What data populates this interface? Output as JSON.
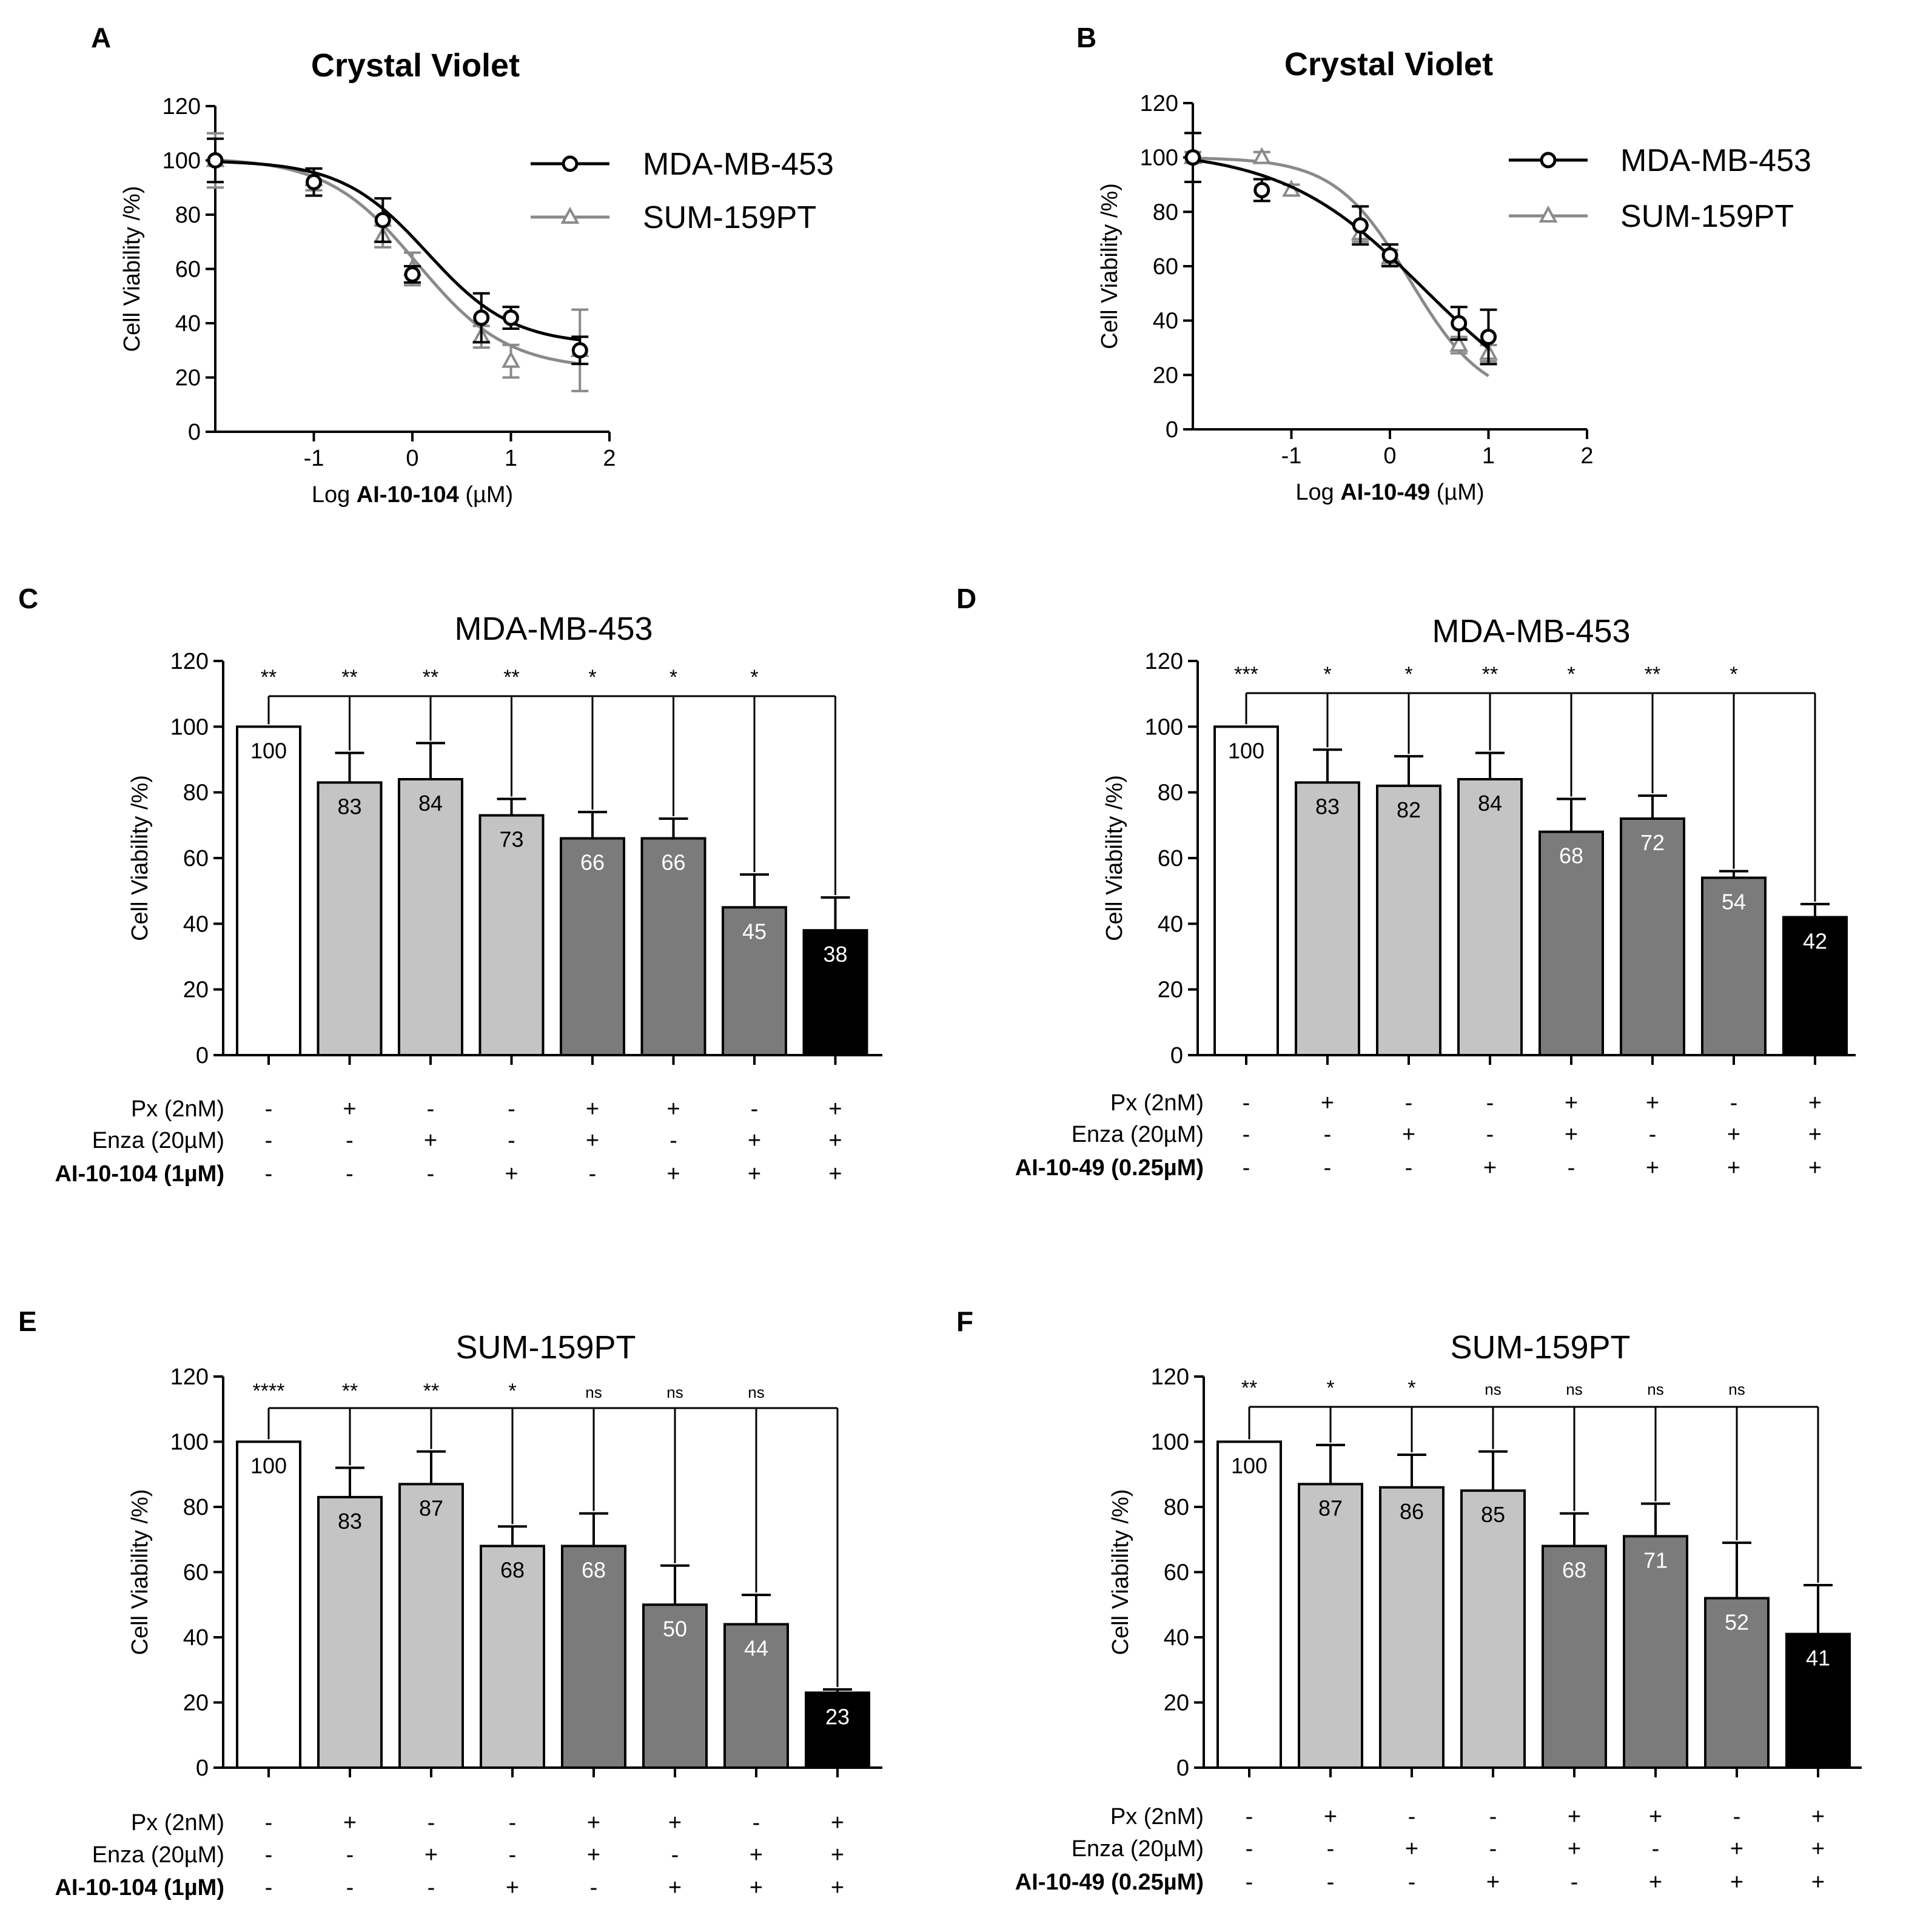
{
  "colors": {
    "black": "#000000",
    "white": "#ffffff",
    "light_gray": "#c4c4c4",
    "dark_gray": "#7b7b7b",
    "sum159_line": "#8a8a8a"
  },
  "chart_data": [
    {
      "panel": "A",
      "type": "line",
      "title": "Crystal Violet",
      "xlabel_prefix": "Log ",
      "xlabel_bold": "AI-10-104",
      "xlabel_suffix": " (µM)",
      "ylabel": "Cell Viability /%)",
      "xlim": [
        -2,
        2
      ],
      "ylim": [
        0,
        120
      ],
      "xticks": [
        -1,
        0,
        1,
        2
      ],
      "yticks": [
        0,
        20,
        40,
        60,
        80,
        100,
        120
      ],
      "series": [
        {
          "name": "MDA-MB-453",
          "marker": "circle",
          "points": [
            {
              "x": -2,
              "y": 100,
              "err": 8
            },
            {
              "x": -1,
              "y": 92,
              "err": 5
            },
            {
              "x": -0.3,
              "y": 78,
              "err": 8
            },
            {
              "x": 0,
              "y": 58,
              "err": 3
            },
            {
              "x": 0.7,
              "y": 42,
              "err": 9
            },
            {
              "x": 1,
              "y": 42,
              "err": 4
            },
            {
              "x": 1.7,
              "y": 30,
              "err": 5
            }
          ],
          "curve": {
            "bottom": 32,
            "top": 100,
            "logIC50": 0.15,
            "hill": -1.0
          }
        },
        {
          "name": "SUM-159PT",
          "marker": "triangle",
          "points": [
            {
              "x": -2,
              "y": 100,
              "err": 10
            },
            {
              "x": -1,
              "y": 93,
              "err": 4
            },
            {
              "x": -0.3,
              "y": 72,
              "err": 4
            },
            {
              "x": 0,
              "y": 60,
              "err": 6
            },
            {
              "x": 0.7,
              "y": 35,
              "err": 4
            },
            {
              "x": 1,
              "y": 26,
              "err": 6
            },
            {
              "x": 1.7,
              "y": 30,
              "err": 15
            }
          ],
          "curve": {
            "bottom": 23,
            "top": 101,
            "logIC50": 0.05,
            "hill": -0.95
          }
        }
      ]
    },
    {
      "panel": "B",
      "type": "line",
      "title": "Crystal Violet",
      "xlabel_prefix": "Log ",
      "xlabel_bold": "AI-10-49",
      "xlabel_suffix": " (µM)",
      "ylabel": "Cell Viability /%)",
      "xlim": [
        -2,
        2
      ],
      "ylim": [
        0,
        120
      ],
      "xticks": [
        -1,
        0,
        1,
        2
      ],
      "yticks": [
        0,
        20,
        40,
        60,
        80,
        100,
        120
      ],
      "series": [
        {
          "name": "MDA-MB-453",
          "marker": "circle",
          "points": [
            {
              "x": -2,
              "y": 100,
              "err": 9
            },
            {
              "x": -1.3,
              "y": 88,
              "err": 4
            },
            {
              "x": -0.3,
              "y": 75,
              "err": 7
            },
            {
              "x": 0,
              "y": 64,
              "err": 4
            },
            {
              "x": 0.7,
              "y": 39,
              "err": 6
            },
            {
              "x": 1,
              "y": 34,
              "err": 10
            }
          ],
          "curve": {
            "bottom": 0,
            "top": 103,
            "logIC50": 0.35,
            "hill": -0.6
          }
        },
        {
          "name": "SUM-159PT",
          "marker": "triangle",
          "points": [
            {
              "x": -2,
              "y": 100,
              "err": 2
            },
            {
              "x": -1.3,
              "y": 100,
              "err": 2
            },
            {
              "x": -1,
              "y": 88,
              "err": 2
            },
            {
              "x": -0.3,
              "y": 72,
              "err": 3
            },
            {
              "x": 0,
              "y": 63,
              "err": 3
            },
            {
              "x": 0.7,
              "y": 31,
              "err": 3
            },
            {
              "x": 1,
              "y": 28,
              "err": 3
            }
          ],
          "curve": {
            "bottom": 10,
            "top": 100,
            "logIC50": 0.2,
            "hill": -1.15
          }
        }
      ]
    },
    {
      "panel": "C",
      "type": "bar",
      "title": "MDA-MB-453",
      "ylabel": "Cell Viability /%)",
      "ylim": [
        0,
        120
      ],
      "yticks": [
        0,
        20,
        40,
        60,
        80,
        100,
        120
      ],
      "values": [
        100,
        83,
        84,
        73,
        66,
        66,
        45,
        38
      ],
      "errors": [
        0,
        9,
        11,
        5,
        8,
        6,
        10,
        10
      ],
      "labels": [
        "100",
        "83",
        "84",
        "73",
        "66",
        "66",
        "45",
        "38"
      ],
      "bar_colors": [
        "white",
        "light",
        "light",
        "light",
        "dark",
        "dark",
        "dark",
        "black"
      ],
      "significance": [
        "**",
        "**",
        "**",
        "**",
        "*",
        "*",
        "*"
      ],
      "conditions": [
        {
          "label": "Px (2nM)",
          "bold": false,
          "signs": [
            "-",
            "+",
            "-",
            "-",
            "+",
            "+",
            "-",
            "+"
          ]
        },
        {
          "label": "Enza (20µM)",
          "bold": false,
          "signs": [
            "-",
            "-",
            "+",
            "-",
            "+",
            "-",
            "+",
            "+"
          ]
        },
        {
          "label": "AI-10-104 (1µM)",
          "bold": true,
          "signs": [
            "-",
            "-",
            "-",
            "+",
            "-",
            "+",
            "+",
            "+"
          ]
        }
      ]
    },
    {
      "panel": "D",
      "type": "bar",
      "title": "MDA-MB-453",
      "ylabel": "Cell Viability /%)",
      "ylim": [
        0,
        120
      ],
      "yticks": [
        0,
        20,
        40,
        60,
        80,
        100,
        120
      ],
      "values": [
        100,
        83,
        82,
        84,
        68,
        72,
        54,
        42
      ],
      "errors": [
        0,
        10,
        9,
        8,
        10,
        7,
        2,
        4
      ],
      "labels": [
        "100",
        "83",
        "82",
        "84",
        "68",
        "72",
        "54",
        "42"
      ],
      "bar_colors": [
        "white",
        "light",
        "light",
        "light",
        "dark",
        "dark",
        "dark",
        "black"
      ],
      "significance": [
        "***",
        "*",
        "*",
        "**",
        "*",
        "**",
        "*"
      ],
      "conditions": [
        {
          "label": "Px (2nM)",
          "bold": false,
          "signs": [
            "-",
            "+",
            "-",
            "-",
            "+",
            "+",
            "-",
            "+"
          ]
        },
        {
          "label": "Enza (20µM)",
          "bold": false,
          "signs": [
            "-",
            "-",
            "+",
            "-",
            "+",
            "-",
            "+",
            "+"
          ]
        },
        {
          "label": "AI-10-49 (0.25µM)",
          "bold": true,
          "signs": [
            "-",
            "-",
            "-",
            "+",
            "-",
            "+",
            "+",
            "+"
          ]
        }
      ]
    },
    {
      "panel": "E",
      "type": "bar",
      "title": "SUM-159PT",
      "ylabel": "Cell Viability /%)",
      "ylim": [
        0,
        120
      ],
      "yticks": [
        0,
        20,
        40,
        60,
        80,
        100,
        120
      ],
      "values": [
        100,
        83,
        87,
        68,
        68,
        50,
        44,
        23
      ],
      "errors": [
        0,
        9,
        10,
        6,
        10,
        12,
        9,
        1
      ],
      "labels": [
        "100",
        "83",
        "87",
        "68",
        "68",
        "50",
        "44",
        "23"
      ],
      "bar_colors": [
        "white",
        "light",
        "light",
        "light",
        "dark",
        "dark",
        "dark",
        "black"
      ],
      "significance": [
        "****",
        "**",
        "**",
        "*",
        "ns",
        "ns",
        "ns"
      ],
      "conditions": [
        {
          "label": "Px (2nM)",
          "bold": false,
          "signs": [
            "-",
            "+",
            "-",
            "-",
            "+",
            "+",
            "-",
            "+"
          ]
        },
        {
          "label": "Enza (20µM)",
          "bold": false,
          "signs": [
            "-",
            "-",
            "+",
            "-",
            "+",
            "-",
            "+",
            "+"
          ]
        },
        {
          "label": "AI-10-104 (1µM)",
          "bold": true,
          "signs": [
            "-",
            "-",
            "-",
            "+",
            "-",
            "+",
            "+",
            "+"
          ]
        }
      ]
    },
    {
      "panel": "F",
      "type": "bar",
      "title": "SUM-159PT",
      "ylabel": "Cell Viability /%)",
      "ylim": [
        0,
        120
      ],
      "yticks": [
        0,
        20,
        40,
        60,
        80,
        100,
        120
      ],
      "values": [
        100,
        87,
        86,
        85,
        68,
        71,
        52,
        41
      ],
      "errors": [
        0,
        12,
        10,
        12,
        10,
        10,
        17,
        15
      ],
      "labels": [
        "100",
        "87",
        "86",
        "85",
        "68",
        "71",
        "52",
        "41"
      ],
      "bar_colors": [
        "white",
        "light",
        "light",
        "light",
        "dark",
        "dark",
        "dark",
        "black"
      ],
      "significance": [
        "**",
        "*",
        "*",
        "ns",
        "ns",
        "ns",
        "ns"
      ],
      "conditions": [
        {
          "label": "Px (2nM)",
          "bold": false,
          "signs": [
            "-",
            "+",
            "-",
            "-",
            "+",
            "+",
            "-",
            "+"
          ]
        },
        {
          "label": "Enza (20µM)",
          "bold": false,
          "signs": [
            "-",
            "-",
            "+",
            "-",
            "+",
            "-",
            "+",
            "+"
          ]
        },
        {
          "label": "AI-10-49 (0.25µM)",
          "bold": true,
          "signs": [
            "-",
            "-",
            "-",
            "+",
            "-",
            "+",
            "+",
            "+"
          ]
        }
      ]
    }
  ]
}
